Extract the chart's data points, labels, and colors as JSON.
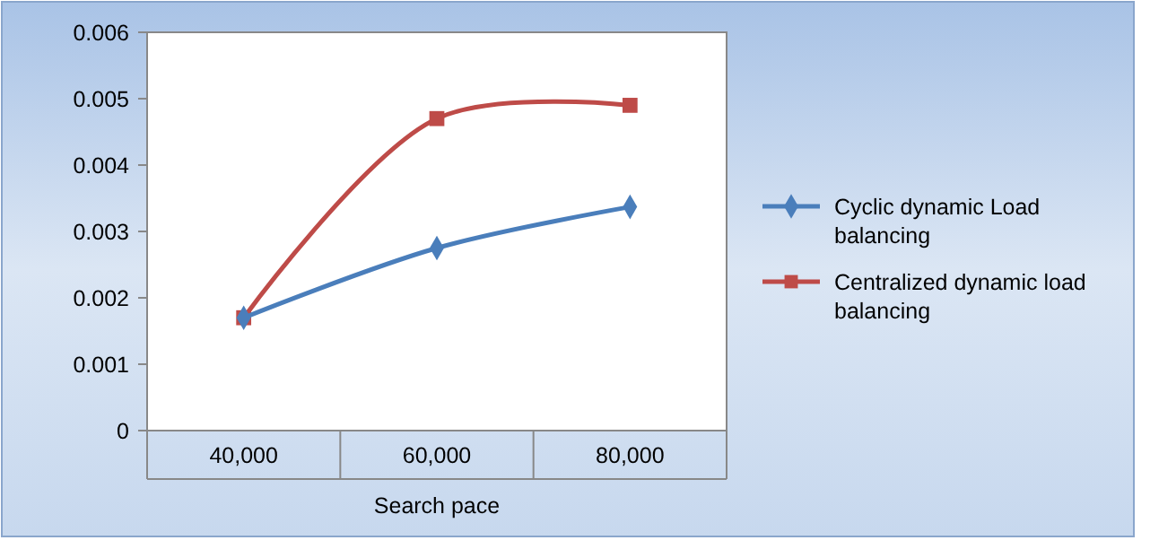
{
  "chart_data": {
    "type": "line",
    "categories": [
      "40,000",
      "60,000",
      "80,000"
    ],
    "xlabel": "Search pace",
    "ylim": [
      0,
      0.006
    ],
    "yticks": [
      {
        "value": 0,
        "label": "0"
      },
      0.001,
      0.002,
      0.003,
      0.004,
      0.005,
      0.006
    ],
    "grid": false,
    "legend": "right",
    "series": [
      {
        "name": "Cyclic dynamic Load balancing",
        "color": "#4a7ebb",
        "marker": "diamond",
        "values": [
          0.0017,
          0.00275,
          0.00337
        ]
      },
      {
        "name": "Centralized dynamic load balancing",
        "color": "#be4b48",
        "marker": "square",
        "values": [
          0.0017,
          0.0047,
          0.0049
        ]
      }
    ]
  }
}
